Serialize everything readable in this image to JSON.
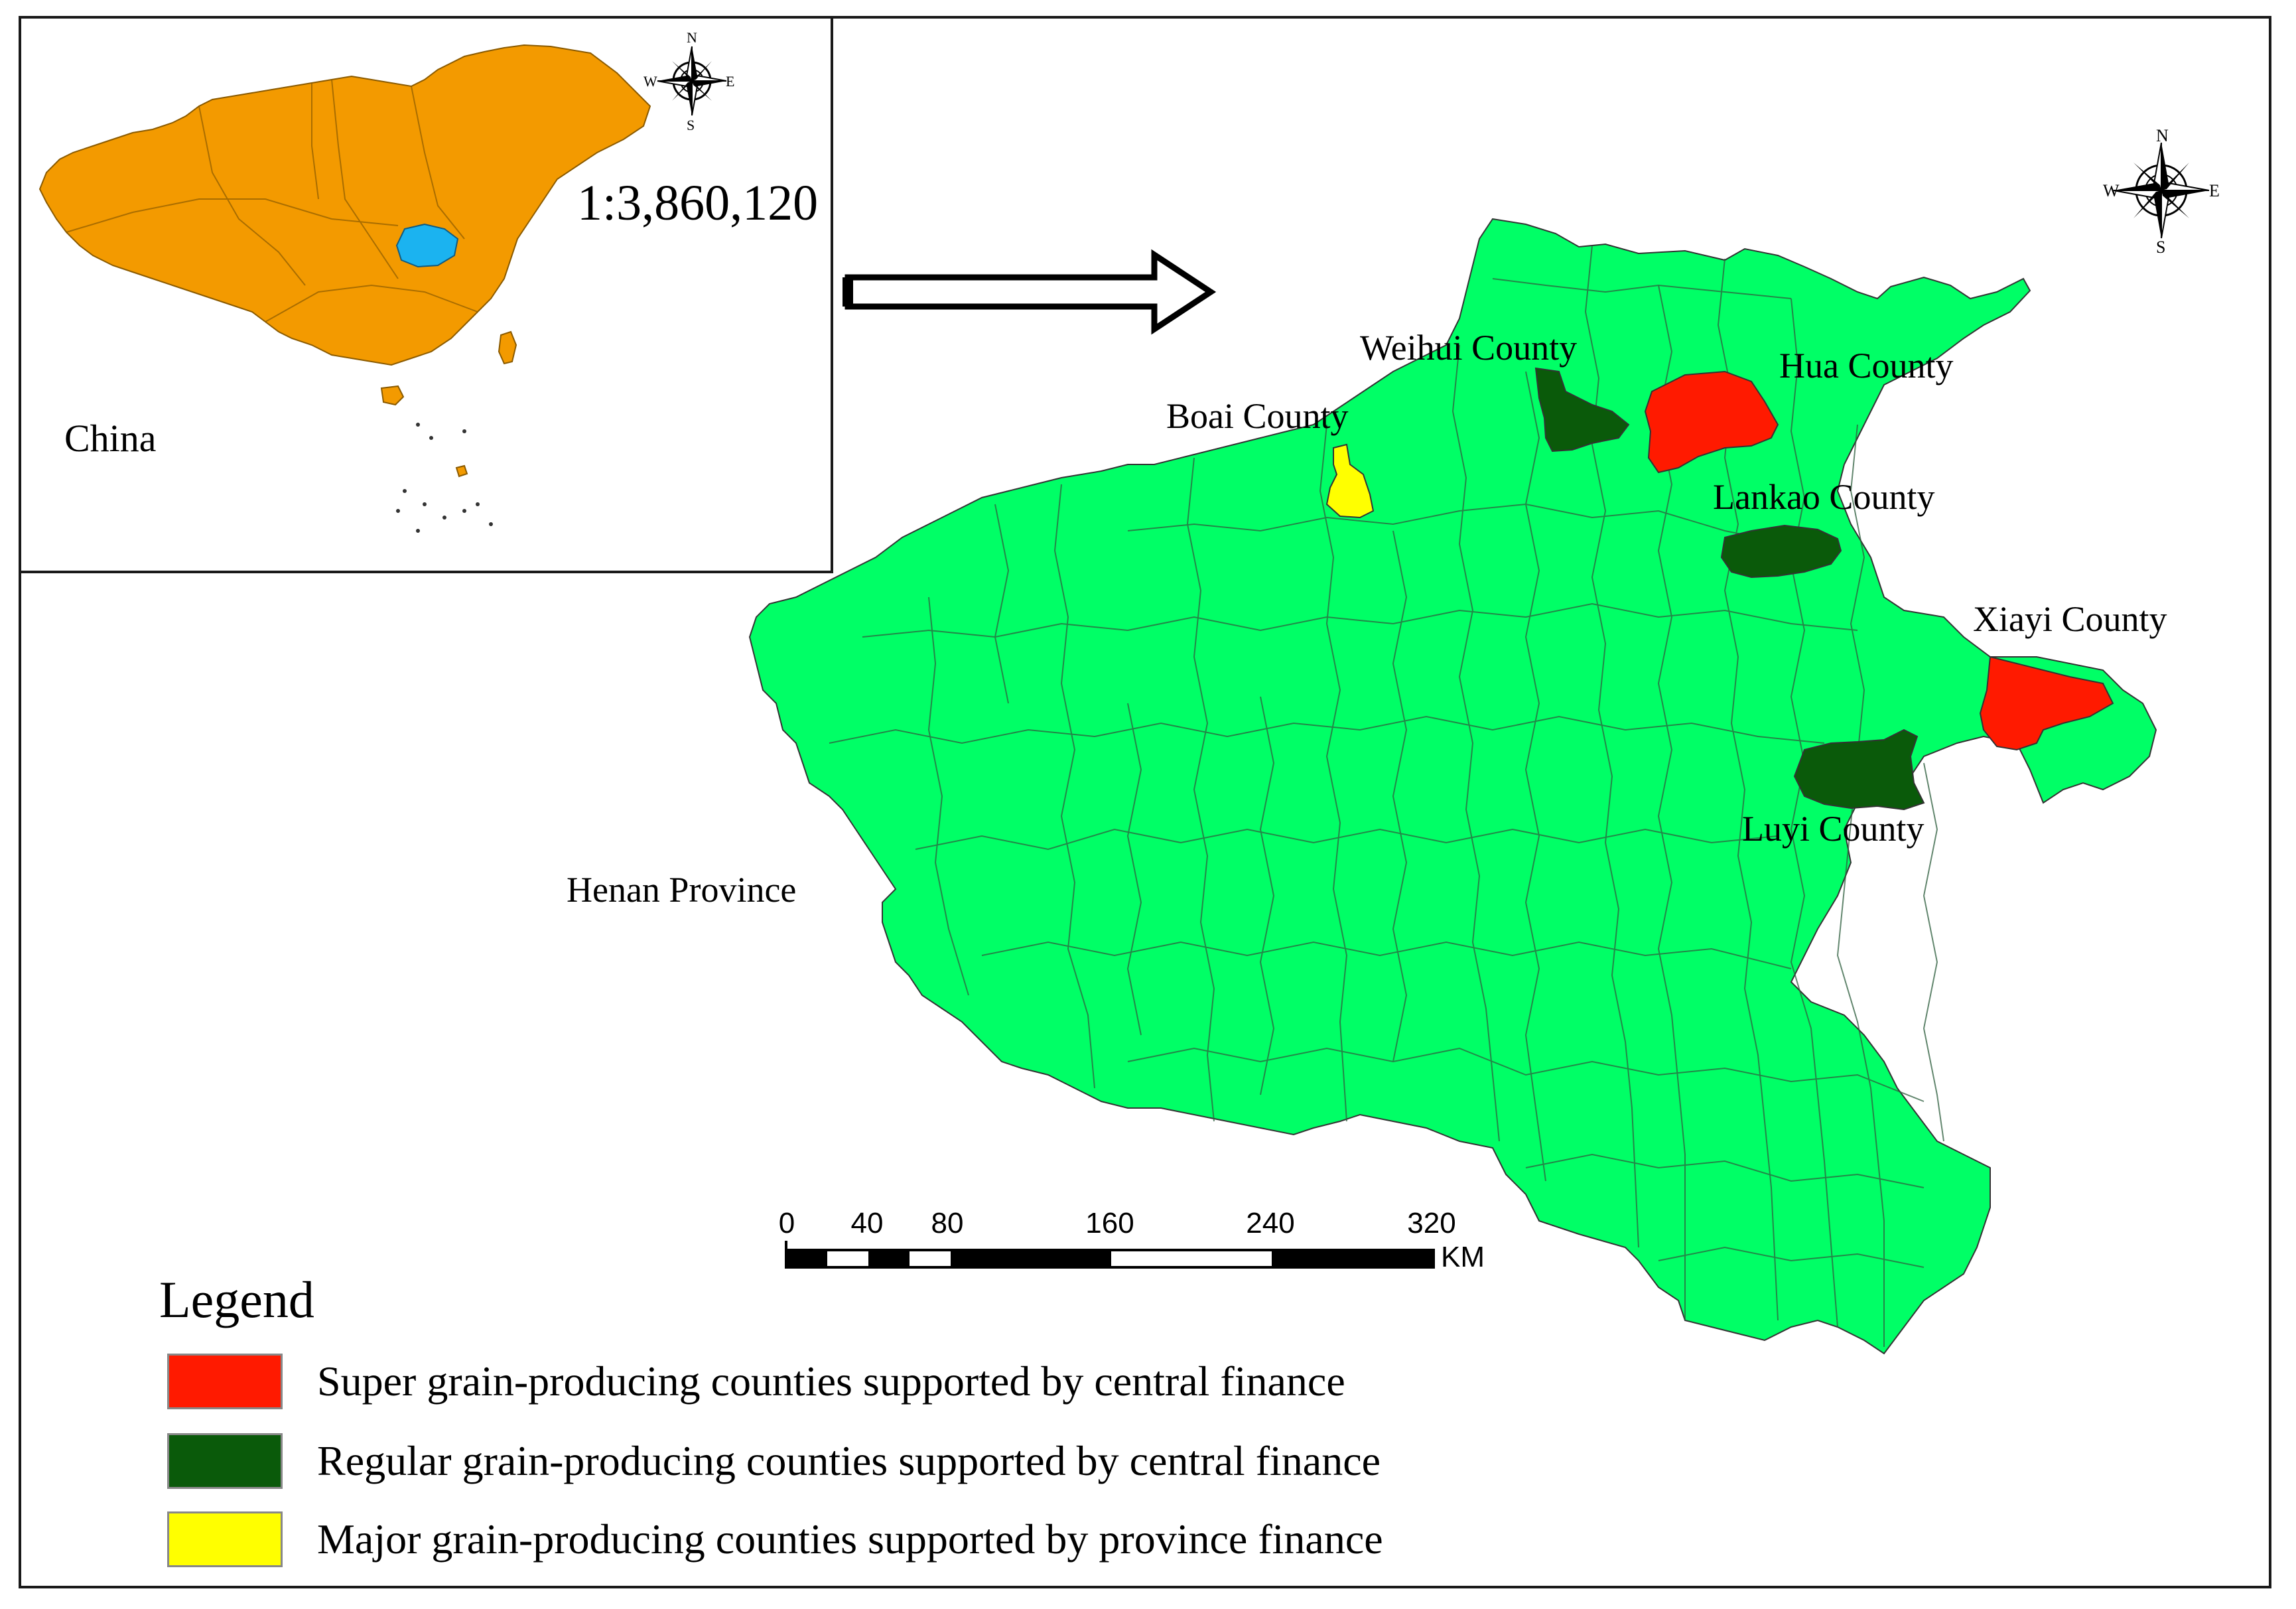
{
  "inset": {
    "country_label": "China",
    "scale_ratio": "1:3,860,120",
    "country_color": "#F39A00",
    "province_color": "#1BB3F0"
  },
  "main_map": {
    "province_label": "Henan Province",
    "province_color": "#00FF66",
    "counties": [
      {
        "name": "Weihui County",
        "category": "regular"
      },
      {
        "name": "Hua County",
        "category": "super"
      },
      {
        "name": "Boai County",
        "category": "major"
      },
      {
        "name": "Lankao County",
        "category": "regular"
      },
      {
        "name": "Xiayi County",
        "category": "super"
      },
      {
        "name": "Luyi County",
        "category": "regular"
      }
    ]
  },
  "compass": {
    "n": "N",
    "s": "S",
    "e": "E",
    "w": "W"
  },
  "scale_bar": {
    "ticks": [
      "0",
      "40",
      "80",
      "160",
      "240",
      "320"
    ],
    "unit": "KM"
  },
  "legend": {
    "title": "Legend",
    "items": [
      {
        "label": "Super grain-producing counties supported by central finance",
        "color": "#FF1A00"
      },
      {
        "label": "Regular grain-producing counties supported by central finance",
        "color": "#0A5A0A"
      },
      {
        "label": "Major grain-producing counties supported by province finance",
        "color": "#FFFF00"
      }
    ]
  }
}
